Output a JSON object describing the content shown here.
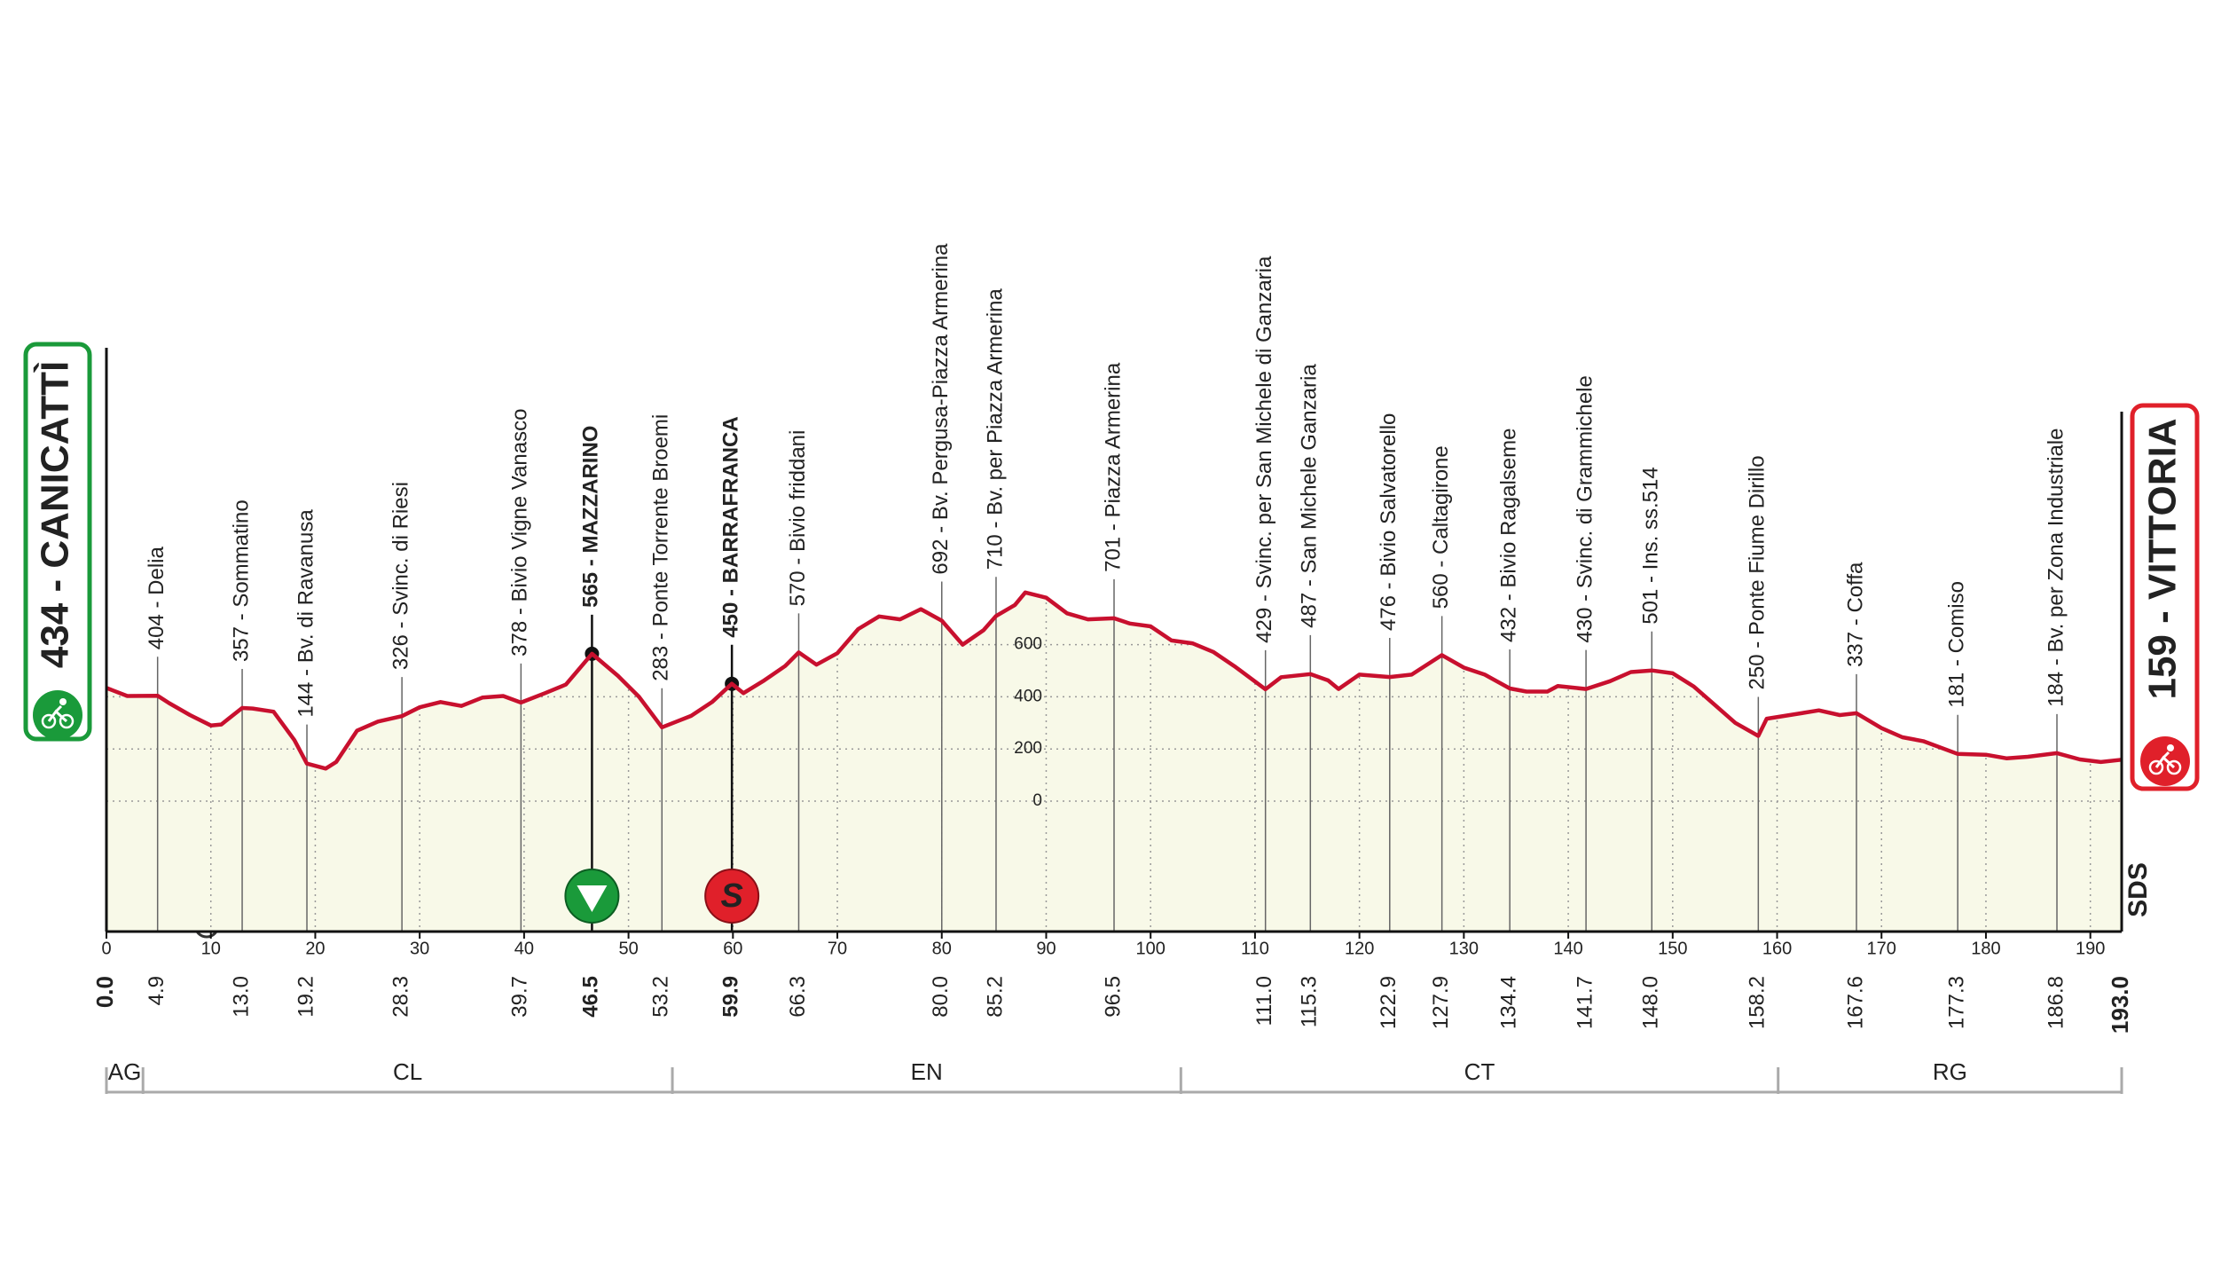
{
  "chart_data": {
    "type": "area",
    "start": {
      "label": "434 - CANICATTÌ",
      "km": {
        "value": 0,
        "label": "0.0"
      }
    },
    "finish": {
      "label": "159 - VITTORIA",
      "km": {
        "value": 193,
        "label": "193.0"
      }
    },
    "logo": "SDS",
    "line_color": "#c8102e",
    "fill_color": "#f8f9e8",
    "start_color": "#1a9a3a",
    "finish_color": "#e0202a",
    "x": [
      0,
      2,
      4.9,
      6,
      8,
      10,
      11,
      13,
      14,
      16,
      18,
      19.2,
      21,
      22,
      24,
      26,
      28.3,
      30,
      32,
      34,
      36,
      38,
      39.7,
      42,
      44,
      46.5,
      49,
      51,
      53.2,
      56,
      58,
      59.9,
      61,
      63,
      65,
      66.3,
      68,
      70,
      72,
      74,
      76,
      78,
      80,
      82,
      84,
      85.2,
      87,
      88,
      90,
      92,
      94,
      96.5,
      98,
      100,
      102,
      104,
      106,
      108,
      111,
      112.5,
      115.3,
      117,
      118,
      120,
      122.9,
      125,
      127.9,
      130,
      132,
      134.4,
      136,
      138,
      139,
      141.7,
      144,
      146,
      148,
      150,
      152,
      154,
      156,
      158.2,
      159,
      162,
      164,
      166,
      167.6,
      170,
      172,
      174,
      177.3,
      180,
      182,
      184,
      186.8,
      189,
      191,
      193
    ],
    "values": [
      434,
      403,
      404,
      376,
      330,
      290,
      294,
      357,
      355,
      343,
      234,
      144,
      125,
      150,
      270,
      305,
      326,
      360,
      380,
      365,
      397,
      403,
      378,
      414,
      447,
      565,
      480,
      400,
      283,
      327,
      380,
      450,
      414,
      463,
      518,
      570,
      523,
      567,
      660,
      708,
      697,
      736,
      692,
      600,
      655,
      710,
      752,
      800,
      780,
      720,
      697,
      701,
      681,
      670,
      616,
      605,
      572,
      518,
      429,
      475,
      487,
      463,
      430,
      485,
      476,
      485,
      560,
      512,
      485,
      432,
      420,
      420,
      441,
      430,
      460,
      495,
      501,
      490,
      440,
      370,
      300,
      250,
      316,
      335,
      348,
      330,
      337,
      280,
      245,
      230,
      181,
      178,
      164,
      170,
      184,
      160,
      150,
      159
    ],
    "xlim": [
      0,
      193
    ],
    "xticks": [
      0,
      10,
      20,
      30,
      40,
      50,
      60,
      70,
      80,
      90,
      100,
      110,
      120,
      130,
      140,
      150,
      160,
      170,
      180,
      190
    ],
    "ylim": [
      -500,
      1000
    ],
    "yticks": [
      0,
      200,
      400,
      600
    ],
    "grid": true,
    "waypoints": [
      {
        "km": 4.9,
        "label": "404 - Delia"
      },
      {
        "km": {
          "value": 13,
          "label": "13.0"
        },
        "label": "357 - Sommatino"
      },
      {
        "km": 19.2,
        "label": "144 - Bv. di Ravanusa"
      },
      {
        "km": 28.3,
        "label": "326 - Svinc. di Riesi"
      },
      {
        "km": 39.7,
        "label": "378 - Bivio Vigne Vanasco"
      },
      {
        "km": 46.5,
        "label": "565 - MAZZARINO",
        "bold": true,
        "marker": "climb"
      },
      {
        "km": 53.2,
        "label": "283 - Ponte Torrente Broemi"
      },
      {
        "km": 59.9,
        "label": "450 - BARRAFRANCA",
        "bold": true,
        "marker": "sprint",
        "marker_text": "S"
      },
      {
        "km": 66.3,
        "label": "570 - Bivio friddani"
      },
      {
        "km": {
          "value": 80,
          "label": "80.0"
        },
        "label": "692 - Bv. Pergusa-Piazza Armerina"
      },
      {
        "km": 85.2,
        "label": "710 - Bv. per Piazza Armerina"
      },
      {
        "km": 96.5,
        "label": "701 - Piazza Armerina"
      },
      {
        "km": {
          "value": 111,
          "label": "111.0"
        },
        "label": "429 - Svinc. per San Michele di Ganzaria"
      },
      {
        "km": 115.3,
        "label": "487 - San Michele Ganzaria"
      },
      {
        "km": 122.9,
        "label": "476 - Bivio Salvatorello"
      },
      {
        "km": 127.9,
        "label": "560 - Caltagirone"
      },
      {
        "km": 134.4,
        "label": "432 - Bivio Ragalseme"
      },
      {
        "km": 141.7,
        "label": "430 - Svinc. di Grammichele"
      },
      {
        "km": {
          "value": 148,
          "label": "148.0"
        },
        "label": "501 - Ins. ss.514"
      },
      {
        "km": 158.2,
        "label": "250 - Ponte Fiume Dirillo"
      },
      {
        "km": 167.6,
        "label": "337 - Coffa"
      },
      {
        "km": 177.3,
        "label": "181 - Comiso"
      },
      {
        "km": 186.8,
        "label": "184 - Bv. per Zona Industriale"
      }
    ],
    "regions": [
      {
        "label": "AG",
        "from": 0,
        "to": 3.5
      },
      {
        "label": "CL",
        "from": 3.5,
        "to": 54.2
      },
      {
        "label": "EN",
        "from": 54.2,
        "to": 102.9
      },
      {
        "label": "CT",
        "from": 102.9,
        "to": 160.1
      },
      {
        "label": "RG",
        "from": 160.1,
        "to": 193
      }
    ]
  }
}
